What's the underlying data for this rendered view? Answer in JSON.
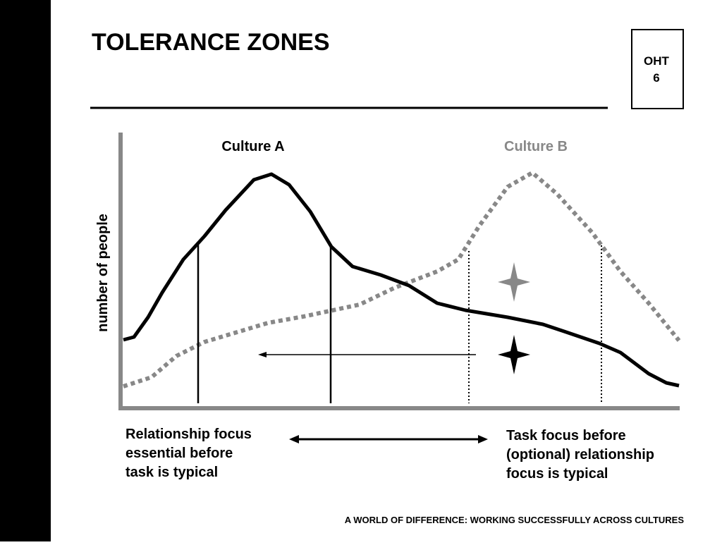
{
  "header": {
    "title": "TOLERANCE ZONES",
    "badge": [
      "OHT",
      "6"
    ]
  },
  "diagram": {
    "culture_a": "Culture A",
    "culture_b": "Culture B",
    "y_axis_label": "number of people",
    "left_caption": [
      "Relationship focus",
      "essential before",
      "task is typical"
    ],
    "right_caption": [
      "Task focus before",
      "(optional) relationship",
      "focus is typical"
    ]
  },
  "footer": "A WORLD OF DIFFERENCE: WORKING SUCCESSFULLY ACROSS CULTURES"
}
